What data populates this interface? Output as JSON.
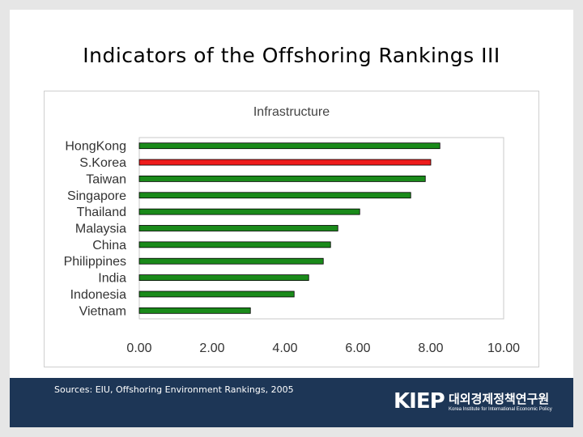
{
  "slide": {
    "title": "Indicators of the Offshoring Rankings III"
  },
  "footer": {
    "sources": "Sources: EIU, Offshoring Environment Rankings, 2005",
    "logo_mark": "KIEP",
    "logo_korean": "대외경제정책연구원",
    "logo_english": "Korea Institute for International Economic Policy"
  },
  "colors": {
    "bar": "#1a8a1a",
    "highlight": "#ee1c1c",
    "footer": "#1d3656"
  },
  "chart_data": {
    "type": "bar",
    "orientation": "horizontal",
    "title": "Infrastructure",
    "categories": [
      "HongKong",
      "S.Korea",
      "Taiwan",
      "Singapore",
      "Thailand",
      "Malaysia",
      "China",
      "Philippines",
      "India",
      "Indonesia",
      "Vietnam"
    ],
    "values": [
      8.25,
      8.0,
      7.85,
      7.45,
      6.05,
      5.45,
      5.25,
      5.05,
      4.65,
      4.25,
      3.05
    ],
    "highlight": "S.Korea",
    "xlim": [
      0,
      10
    ],
    "xticks": [
      "0.00",
      "2.00",
      "4.00",
      "6.00",
      "8.00",
      "10.00"
    ],
    "grid": false
  }
}
